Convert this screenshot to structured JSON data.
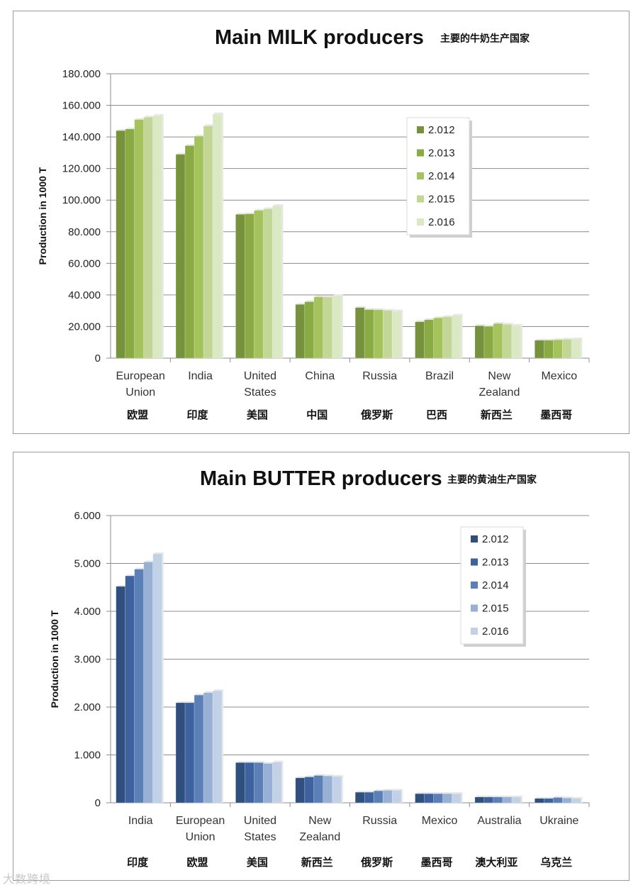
{
  "watermark": "大数跨境",
  "chart_data": [
    {
      "type": "bar",
      "title": "Main MILK producers",
      "subtitle": "主要的牛奶生产国家",
      "ylabel": "Production in 1000 T",
      "xlabel": "",
      "ylim": [
        0,
        180000
      ],
      "yticks": [
        0,
        20000,
        40000,
        60000,
        80000,
        100000,
        120000,
        140000,
        160000,
        180000
      ],
      "ytick_labels": [
        "0",
        "20.000",
        "40.000",
        "60.000",
        "80.000",
        "100.000",
        "120.000",
        "140.000",
        "160.000",
        "180.000"
      ],
      "categories": [
        "European Union",
        "India",
        "United States",
        "China",
        "Russia",
        "Brazil",
        "New Zealand",
        "Mexico"
      ],
      "category_lines": [
        [
          "European",
          "Union"
        ],
        [
          "India"
        ],
        [
          "United",
          "States"
        ],
        [
          "China"
        ],
        [
          "Russia"
        ],
        [
          "Brazil"
        ],
        [
          "New",
          "Zealand"
        ],
        [
          "Mexico"
        ]
      ],
      "categories_cn": [
        "欧盟",
        "印度",
        "美国",
        "中国",
        "俄罗斯",
        "巴西",
        "新西兰",
        "墨西哥"
      ],
      "legend_position": "top-right",
      "series": [
        {
          "name": "2.012",
          "color": "#76923c",
          "values": [
            144000,
            129000,
            91000,
            34000,
            32000,
            23000,
            20500,
            11300
          ]
        },
        {
          "name": "2.013",
          "color": "#8aab44",
          "values": [
            145000,
            134500,
            91300,
            35700,
            30700,
            24300,
            20100,
            11300
          ]
        },
        {
          "name": "2.014",
          "color": "#a4c35d",
          "values": [
            151000,
            140500,
            93500,
            38800,
            30600,
            25500,
            21900,
            11600
          ]
        },
        {
          "name": "2.015",
          "color": "#c2d796",
          "values": [
            152500,
            147000,
            94500,
            38700,
            30200,
            26200,
            21400,
            11900
          ]
        },
        {
          "name": "2.016",
          "color": "#dbe8c4",
          "values": [
            153500,
            154500,
            96500,
            39500,
            29800,
            27100,
            20700,
            12100
          ]
        }
      ]
    },
    {
      "type": "bar",
      "title": "Main BUTTER producers",
      "subtitle": "主要的黄油生产国家",
      "ylabel": "Production in 1000 T",
      "xlabel": "",
      "ylim": [
        0,
        6000
      ],
      "yticks": [
        0,
        1000,
        2000,
        3000,
        4000,
        5000,
        6000
      ],
      "ytick_labels": [
        "0",
        "1.000",
        "2.000",
        "3.000",
        "4.000",
        "5.000",
        "6.000"
      ],
      "categories": [
        "India",
        "European Union",
        "United States",
        "New Zealand",
        "Russia",
        "Mexico",
        "Australia",
        "Ukraine"
      ],
      "category_lines": [
        [
          "India"
        ],
        [
          "European",
          "Union"
        ],
        [
          "United",
          "States"
        ],
        [
          "New",
          "Zealand"
        ],
        [
          "Russia"
        ],
        [
          "Mexico"
        ],
        [
          "Australia"
        ],
        [
          "Ukraine"
        ]
      ],
      "categories_cn": [
        "印度",
        "欧盟",
        "美国",
        "新西兰",
        "俄罗斯",
        "墨西哥",
        "澳大利亚",
        "乌克兰"
      ],
      "legend_position": "top-right",
      "series": [
        {
          "name": "2.012",
          "color": "#2f4f7e",
          "values": [
            4520,
            2090,
            840,
            520,
            220,
            190,
            120,
            90
          ]
        },
        {
          "name": "2.013",
          "color": "#3e62a0",
          "values": [
            4740,
            2090,
            840,
            540,
            220,
            190,
            120,
            90
          ]
        },
        {
          "name": "2.014",
          "color": "#5b80b8",
          "values": [
            4880,
            2250,
            840,
            570,
            250,
            190,
            120,
            110
          ]
        },
        {
          "name": "2.015",
          "color": "#98b0d4",
          "values": [
            5030,
            2300,
            820,
            560,
            260,
            190,
            120,
            100
          ]
        },
        {
          "name": "2.016",
          "color": "#c3d1e6",
          "values": [
            5200,
            2340,
            850,
            550,
            260,
            190,
            120,
            90
          ]
        }
      ]
    }
  ]
}
